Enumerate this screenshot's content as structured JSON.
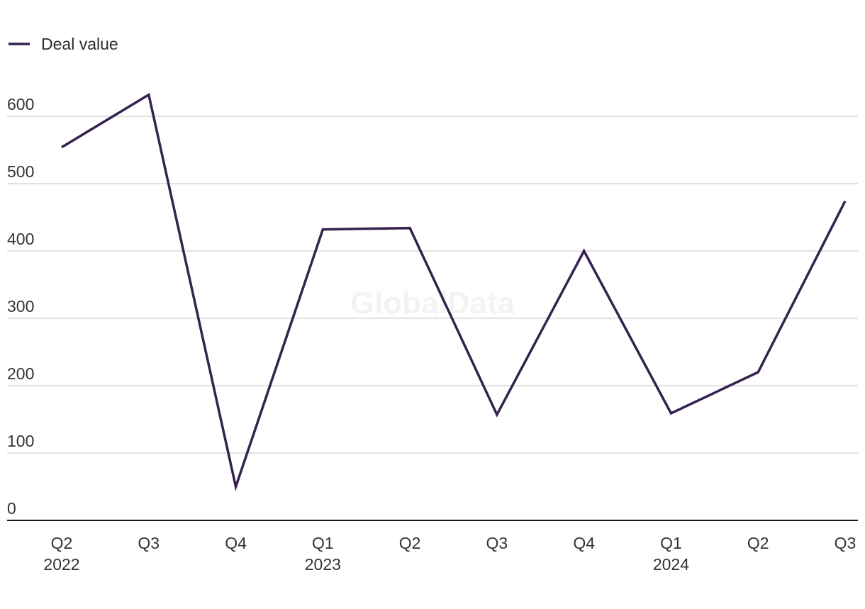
{
  "watermark": "GlobalData",
  "chart_data": {
    "type": "line",
    "title": "",
    "xlabel": "",
    "ylabel": "",
    "categories": [
      "Q2",
      "Q3",
      "Q4",
      "Q1",
      "Q2",
      "Q3",
      "Q4",
      "Q1",
      "Q2",
      "Q3"
    ],
    "year_labels": [
      "2022",
      "",
      "",
      "2023",
      "",
      "",
      "",
      "2024",
      "",
      ""
    ],
    "series": [
      {
        "name": "Deal value",
        "color": "#35224f",
        "values": [
          554,
          632,
          50,
          432,
          434,
          157,
          400,
          159,
          220,
          474
        ]
      }
    ],
    "ylim": [
      0,
      600
    ],
    "yticks": [
      0,
      100,
      200,
      300,
      400,
      500,
      600
    ],
    "grid": true,
    "legend": "top-left"
  }
}
